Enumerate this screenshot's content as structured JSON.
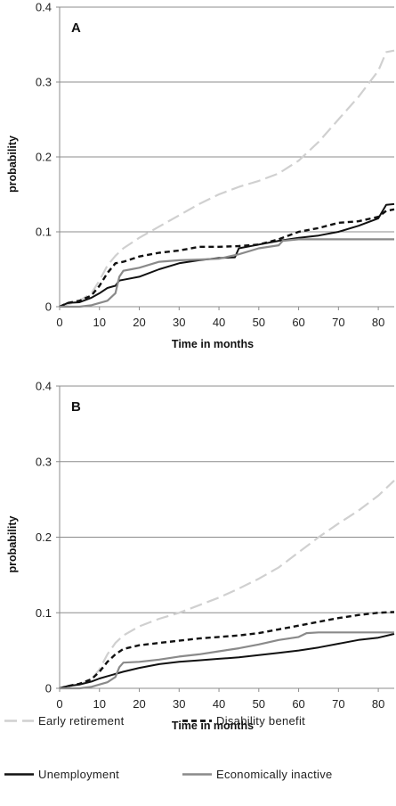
{
  "chart_data": [
    {
      "type": "line",
      "panel_label": "A",
      "xlabel": "Time in months",
      "ylabel": "probability",
      "xlim": [
        0,
        84
      ],
      "ylim": [
        0,
        0.4
      ],
      "x_ticks": [
        0,
        10,
        20,
        30,
        40,
        50,
        60,
        70,
        80
      ],
      "x_tick_labels": [
        "0",
        "10",
        "20",
        "30",
        "40",
        "50",
        "60",
        "70",
        "80"
      ],
      "y_ticks": [
        0,
        0.1,
        0.2,
        0.3,
        0.4
      ],
      "y_tick_labels": [
        "0",
        "0.1",
        "0.2",
        "0.3",
        "0.4"
      ],
      "grid": "horizontal",
      "series": [
        {
          "name": "Early retirement",
          "style": "light-dashed",
          "color": "#d0d0d0",
          "x": [
            0,
            2,
            5,
            8,
            10,
            12,
            14,
            16,
            20,
            25,
            30,
            35,
            40,
            45,
            50,
            55,
            60,
            65,
            70,
            75,
            80,
            82,
            84
          ],
          "y": [
            0,
            0.003,
            0.008,
            0.018,
            0.035,
            0.055,
            0.068,
            0.078,
            0.092,
            0.107,
            0.122,
            0.137,
            0.15,
            0.16,
            0.168,
            0.178,
            0.195,
            0.22,
            0.25,
            0.28,
            0.315,
            0.34,
            0.342
          ]
        },
        {
          "name": "Disability benefit",
          "style": "dark-dashed",
          "color": "#111111",
          "x": [
            0,
            2,
            5,
            8,
            10,
            12,
            14,
            16,
            20,
            25,
            30,
            35,
            40,
            45,
            50,
            55,
            60,
            65,
            70,
            75,
            80,
            82,
            84
          ],
          "y": [
            0,
            0.005,
            0.008,
            0.015,
            0.028,
            0.045,
            0.058,
            0.06,
            0.067,
            0.072,
            0.075,
            0.08,
            0.08,
            0.081,
            0.083,
            0.09,
            0.1,
            0.105,
            0.112,
            0.114,
            0.12,
            0.128,
            0.13
          ]
        },
        {
          "name": "Unemployment",
          "style": "dark-solid",
          "color": "#111111",
          "x": [
            0,
            2,
            5,
            8,
            10,
            12,
            14,
            15,
            16,
            20,
            25,
            30,
            35,
            40,
            44,
            45,
            50,
            55,
            60,
            65,
            70,
            75,
            80,
            82,
            84
          ],
          "y": [
            0,
            0.005,
            0.006,
            0.012,
            0.018,
            0.025,
            0.028,
            0.035,
            0.036,
            0.04,
            0.05,
            0.058,
            0.062,
            0.065,
            0.066,
            0.078,
            0.083,
            0.088,
            0.092,
            0.095,
            0.1,
            0.108,
            0.118,
            0.136,
            0.137
          ]
        },
        {
          "name": "Economically inactive",
          "style": "gray-solid",
          "color": "#8a8a8a",
          "x": [
            0,
            5,
            8,
            12,
            14,
            15,
            16,
            18,
            20,
            25,
            30,
            35,
            40,
            45,
            50,
            55,
            56,
            60,
            65,
            70,
            75,
            80,
            84
          ],
          "y": [
            0,
            0,
            0.002,
            0.008,
            0.018,
            0.04,
            0.048,
            0.05,
            0.052,
            0.06,
            0.062,
            0.063,
            0.064,
            0.07,
            0.078,
            0.082,
            0.088,
            0.09,
            0.09,
            0.09,
            0.09,
            0.09,
            0.09
          ]
        }
      ]
    },
    {
      "type": "line",
      "panel_label": "B",
      "xlabel": "Time in months",
      "ylabel": "probability",
      "xlim": [
        0,
        84
      ],
      "ylim": [
        0,
        0.4
      ],
      "x_ticks": [
        0,
        10,
        20,
        30,
        40,
        50,
        60,
        70,
        80
      ],
      "x_tick_labels": [
        "0",
        "10",
        "20",
        "30",
        "40",
        "50",
        "60",
        "70",
        "80"
      ],
      "y_ticks": [
        0,
        0.1,
        0.2,
        0.3,
        0.4
      ],
      "y_tick_labels": [
        "0",
        "0.1",
        "0.2",
        "0.3",
        "0.4"
      ],
      "grid": "horizontal",
      "series": [
        {
          "name": "Early retirement",
          "style": "light-dashed",
          "color": "#d0d0d0",
          "x": [
            0,
            2,
            5,
            8,
            10,
            12,
            14,
            16,
            20,
            25,
            30,
            35,
            40,
            45,
            50,
            55,
            60,
            65,
            70,
            75,
            80,
            84
          ],
          "y": [
            0,
            0.002,
            0.005,
            0.012,
            0.025,
            0.045,
            0.06,
            0.07,
            0.082,
            0.092,
            0.1,
            0.11,
            0.12,
            0.132,
            0.145,
            0.16,
            0.18,
            0.2,
            0.218,
            0.235,
            0.255,
            0.275
          ]
        },
        {
          "name": "Disability benefit",
          "style": "dark-dashed",
          "color": "#111111",
          "x": [
            0,
            2,
            5,
            8,
            10,
            12,
            14,
            16,
            20,
            25,
            30,
            35,
            40,
            45,
            50,
            55,
            60,
            65,
            70,
            75,
            80,
            84
          ],
          "y": [
            0,
            0.003,
            0.006,
            0.012,
            0.022,
            0.035,
            0.045,
            0.052,
            0.057,
            0.06,
            0.063,
            0.066,
            0.068,
            0.07,
            0.073,
            0.078,
            0.083,
            0.088,
            0.093,
            0.097,
            0.1,
            0.101
          ]
        },
        {
          "name": "Unemployment",
          "style": "dark-solid",
          "color": "#111111",
          "x": [
            0,
            2,
            5,
            8,
            10,
            12,
            14,
            16,
            20,
            25,
            30,
            35,
            40,
            45,
            50,
            55,
            60,
            65,
            70,
            75,
            80,
            84
          ],
          "y": [
            0,
            0.003,
            0.005,
            0.009,
            0.013,
            0.016,
            0.019,
            0.022,
            0.027,
            0.032,
            0.035,
            0.037,
            0.039,
            0.041,
            0.044,
            0.047,
            0.05,
            0.054,
            0.059,
            0.064,
            0.067,
            0.072
          ]
        },
        {
          "name": "Economically inactive",
          "style": "gray-solid",
          "color": "#8a8a8a",
          "x": [
            0,
            5,
            8,
            12,
            14,
            15,
            16,
            20,
            25,
            30,
            35,
            40,
            45,
            50,
            55,
            60,
            62,
            65,
            70,
            75,
            80,
            84
          ],
          "y": [
            0,
            0,
            0.002,
            0.008,
            0.015,
            0.028,
            0.034,
            0.035,
            0.038,
            0.042,
            0.045,
            0.049,
            0.053,
            0.058,
            0.064,
            0.068,
            0.073,
            0.074,
            0.074,
            0.074,
            0.074,
            0.074
          ]
        }
      ]
    }
  ],
  "legend": {
    "items": [
      {
        "label": "Early retirement",
        "style": "light-dashed",
        "color": "#d0d0d0"
      },
      {
        "label": "Disability benefit",
        "style": "dark-dashed",
        "color": "#111111"
      },
      {
        "label": "Unemployment",
        "style": "dark-solid",
        "color": "#111111"
      },
      {
        "label": "Economically inactive",
        "style": "gray-solid",
        "color": "#8a8a8a"
      }
    ]
  }
}
